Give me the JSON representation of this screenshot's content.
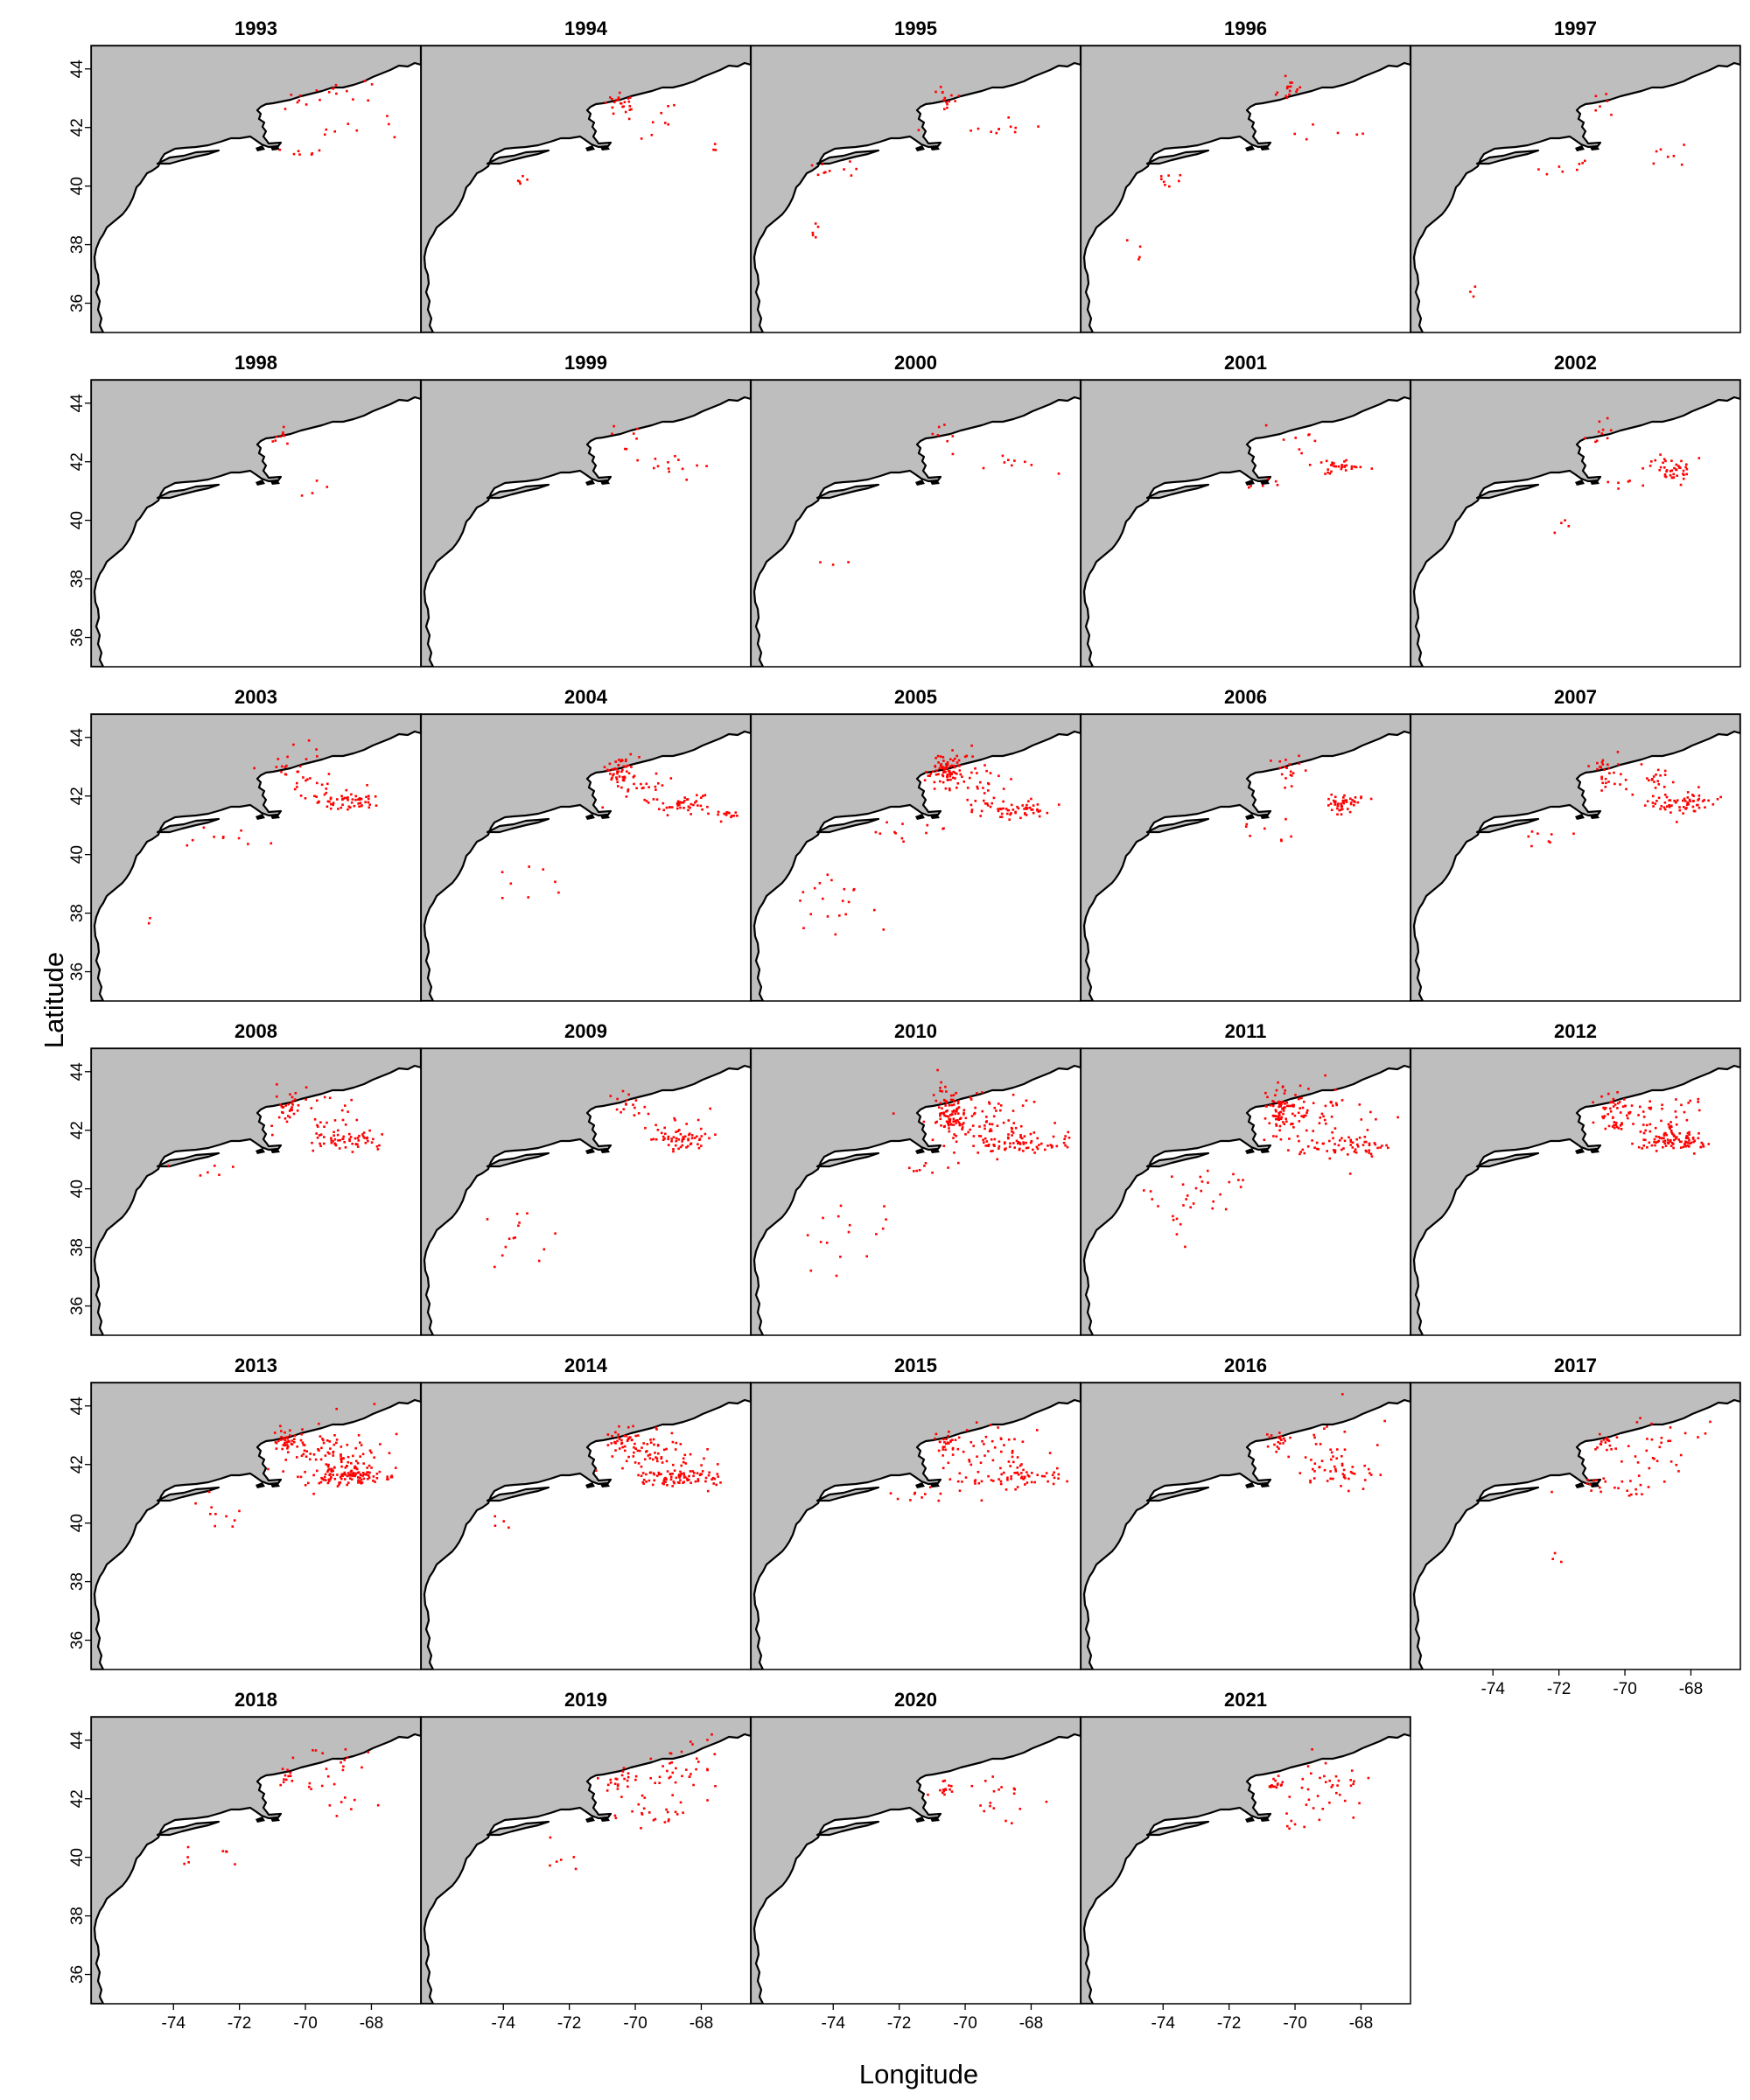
{
  "figure": {
    "xlabel": "Longitude",
    "ylabel": "Latitude",
    "lon_range": [
      -76.5,
      -66.5
    ],
    "lat_range": [
      35,
      44.8
    ],
    "x_ticks": [
      -74,
      -72,
      -70,
      -68
    ],
    "y_ticks": [
      36,
      38,
      40,
      42,
      44
    ],
    "colors": {
      "land": "#bebebe",
      "water": "#ffffff",
      "coastline": "#000000",
      "points": "#ff0000",
      "frame": "#000000"
    },
    "layout": {
      "rows": 6,
      "cols": 5,
      "y_axis_on": "first column only",
      "x_axis_on": "bottom panel of each column"
    }
  },
  "panels": [
    {
      "year": "1993",
      "hotspots": [
        [
          -70.4,
          42.8,
          0.5,
          0.3,
          6
        ],
        [
          -69.2,
          43.3,
          1.2,
          0.5,
          12
        ],
        [
          -68.5,
          42.0,
          1.2,
          0.3,
          8
        ],
        [
          -70.2,
          41.2,
          1.0,
          0.2,
          7
        ]
      ]
    },
    {
      "year": "1994",
      "hotspots": [
        [
          -70.5,
          42.9,
          0.35,
          0.35,
          22
        ],
        [
          -69.6,
          42.3,
          0.9,
          0.6,
          10
        ],
        [
          -67.4,
          41.3,
          0.4,
          0.2,
          3
        ],
        [
          -73.5,
          40.0,
          0.3,
          0.4,
          5
        ]
      ]
    },
    {
      "year": "1995",
      "hotspots": [
        [
          -70.6,
          43.0,
          0.35,
          0.35,
          14
        ],
        [
          -69.0,
          41.9,
          1.2,
          0.3,
          12
        ],
        [
          -73.9,
          40.6,
          0.8,
          0.3,
          10
        ],
        [
          -74.6,
          38.5,
          0.3,
          0.4,
          5
        ]
      ]
    },
    {
      "year": "1996",
      "hotspots": [
        [
          -70.2,
          43.4,
          0.35,
          0.35,
          16
        ],
        [
          -68.8,
          41.8,
          1.2,
          0.3,
          6
        ],
        [
          -73.8,
          40.2,
          0.5,
          0.3,
          8
        ],
        [
          -75.0,
          37.6,
          0.6,
          0.9,
          4
        ]
      ]
    },
    {
      "year": "1997",
      "hotspots": [
        [
          -70.6,
          42.8,
          0.3,
          0.6,
          6
        ],
        [
          -71.8,
          40.6,
          1.0,
          0.3,
          8
        ],
        [
          -68.6,
          41.2,
          1.2,
          0.5,
          7
        ],
        [
          -74.8,
          36.3,
          0.3,
          0.5,
          3
        ]
      ]
    },
    {
      "year": "1998",
      "hotspots": [
        [
          -70.7,
          42.8,
          0.2,
          0.4,
          10
        ],
        [
          -70.0,
          41.2,
          0.6,
          0.3,
          4
        ]
      ]
    },
    {
      "year": "1999",
      "hotspots": [
        [
          -70.3,
          42.8,
          0.5,
          0.5,
          8
        ],
        [
          -68.8,
          41.9,
          1.0,
          0.3,
          12
        ]
      ]
    },
    {
      "year": "2000",
      "hotspots": [
        [
          -70.6,
          43.0,
          0.4,
          0.4,
          6
        ],
        [
          -68.6,
          42.1,
          1.2,
          0.4,
          10
        ],
        [
          -74.0,
          38.6,
          0.6,
          0.4,
          3
        ]
      ]
    },
    {
      "year": "2001",
      "hotspots": [
        [
          -70.0,
          42.8,
          0.6,
          0.4,
          8
        ],
        [
          -68.7,
          41.9,
          0.7,
          0.35,
          30
        ],
        [
          -71.0,
          41.3,
          0.8,
          0.2,
          6
        ]
      ]
    },
    {
      "year": "2002",
      "hotspots": [
        [
          -70.8,
          43.0,
          0.4,
          0.4,
          10
        ],
        [
          -68.5,
          41.8,
          0.6,
          0.35,
          45
        ],
        [
          -70.0,
          41.2,
          0.6,
          0.3,
          6
        ],
        [
          -72.0,
          40.0,
          0.6,
          0.5,
          4
        ]
      ]
    },
    {
      "year": "2003",
      "hotspots": [
        [
          -70.2,
          43.0,
          0.8,
          0.7,
          30
        ],
        [
          -68.8,
          41.9,
          0.9,
          0.3,
          60
        ],
        [
          -72.5,
          40.6,
          1.4,
          0.3,
          10
        ],
        [
          -74.7,
          37.9,
          0.3,
          0.3,
          2
        ]
      ]
    },
    {
      "year": "2004",
      "hotspots": [
        [
          -70.5,
          42.9,
          0.4,
          0.5,
          45
        ],
        [
          -69.7,
          42.3,
          1.0,
          0.6,
          25
        ],
        [
          -68.6,
          41.7,
          0.8,
          0.3,
          40
        ],
        [
          -67.2,
          41.4,
          0.4,
          0.2,
          15
        ],
        [
          -73.5,
          39.5,
          1.2,
          1.2,
          8
        ]
      ]
    },
    {
      "year": "2005",
      "hotspots": [
        [
          -70.6,
          42.9,
          0.45,
          0.5,
          80
        ],
        [
          -69.8,
          42.8,
          0.9,
          0.8,
          30
        ],
        [
          -68.6,
          41.6,
          1.0,
          0.3,
          60
        ],
        [
          -74.0,
          38.5,
          1.2,
          1.5,
          20
        ],
        [
          -71.8,
          40.8,
          1.5,
          0.4,
          12
        ]
      ]
    },
    {
      "year": "2006",
      "hotspots": [
        [
          -70.3,
          42.9,
          0.5,
          0.5,
          18
        ],
        [
          -68.6,
          41.8,
          0.6,
          0.3,
          50
        ],
        [
          -71.0,
          40.8,
          1.0,
          0.4,
          8
        ]
      ]
    },
    {
      "year": "2007",
      "hotspots": [
        [
          -70.5,
          42.9,
          0.5,
          0.5,
          25
        ],
        [
          -69.2,
          42.5,
          1.0,
          0.5,
          25
        ],
        [
          -68.4,
          41.8,
          1.0,
          0.3,
          60
        ],
        [
          -72.8,
          40.6,
          1.2,
          0.3,
          8
        ]
      ]
    },
    {
      "year": "2008",
      "hotspots": [
        [
          -70.6,
          42.9,
          0.35,
          0.45,
          30
        ],
        [
          -69.5,
          42.5,
          1.2,
          0.8,
          25
        ],
        [
          -68.6,
          41.7,
          1.0,
          0.3,
          55
        ],
        [
          -72.8,
          40.6,
          0.8,
          0.3,
          6
        ]
      ]
    },
    {
      "year": "2009",
      "hotspots": [
        [
          -70.3,
          42.9,
          0.5,
          0.4,
          15
        ],
        [
          -69.0,
          42.2,
          1.4,
          0.6,
          20
        ],
        [
          -68.5,
          41.7,
          0.8,
          0.3,
          45
        ],
        [
          -73.5,
          38.2,
          1.4,
          1.4,
          14
        ]
      ]
    },
    {
      "year": "2010",
      "hotspots": [
        [
          -70.5,
          42.7,
          0.5,
          0.8,
          90
        ],
        [
          -69.4,
          42.3,
          1.2,
          0.9,
          70
        ],
        [
          -68.4,
          41.6,
          1.4,
          0.3,
          70
        ],
        [
          -73.5,
          38.6,
          1.4,
          1.2,
          16
        ],
        [
          -71.5,
          40.8,
          1.0,
          0.3,
          8
        ]
      ]
    },
    {
      "year": "2011",
      "hotspots": [
        [
          -70.5,
          42.7,
          0.45,
          0.8,
          70
        ],
        [
          -69.4,
          42.4,
          1.4,
          1.0,
          60
        ],
        [
          -68.4,
          41.5,
          1.4,
          0.35,
          60
        ],
        [
          -73.5,
          39.3,
          1.6,
          1.2,
          20
        ],
        [
          -72.6,
          40.4,
          1.0,
          0.3,
          12
        ]
      ]
    },
    {
      "year": "2012",
      "hotspots": [
        [
          -70.4,
          42.7,
          0.5,
          0.7,
          50
        ],
        [
          -69.2,
          42.3,
          1.2,
          0.8,
          50
        ],
        [
          -68.5,
          41.7,
          0.9,
          0.4,
          80
        ]
      ]
    },
    {
      "year": "2013",
      "hotspots": [
        [
          -70.6,
          42.9,
          0.3,
          0.35,
          30
        ],
        [
          -69.3,
          42.5,
          1.4,
          1.0,
          100
        ],
        [
          -68.7,
          41.6,
          1.3,
          0.35,
          100
        ],
        [
          -72.5,
          40.4,
          1.0,
          0.6,
          10
        ]
      ]
    },
    {
      "year": "2014",
      "hotspots": [
        [
          -70.4,
          42.9,
          0.4,
          0.4,
          30
        ],
        [
          -69.3,
          42.4,
          1.4,
          0.9,
          70
        ],
        [
          -68.6,
          41.6,
          1.3,
          0.3,
          80
        ],
        [
          -74.2,
          40.0,
          0.4,
          0.3,
          4
        ]
      ]
    },
    {
      "year": "2015",
      "hotspots": [
        [
          -70.6,
          42.8,
          0.3,
          0.3,
          20
        ],
        [
          -69.3,
          42.4,
          1.5,
          1.0,
          60
        ],
        [
          -68.6,
          41.6,
          1.3,
          0.3,
          50
        ],
        [
          -71.8,
          41.0,
          1.2,
          0.3,
          10
        ]
      ]
    },
    {
      "year": "2016",
      "hotspots": [
        [
          -70.6,
          42.8,
          0.3,
          0.3,
          20
        ],
        [
          -69.0,
          42.6,
          1.4,
          1.0,
          30
        ],
        [
          -68.5,
          41.7,
          1.3,
          0.4,
          30
        ]
      ]
    },
    {
      "year": "2017",
      "hotspots": [
        [
          -70.6,
          42.8,
          0.3,
          0.3,
          15
        ],
        [
          -69.0,
          42.6,
          1.4,
          1.0,
          30
        ],
        [
          -70.2,
          41.3,
          1.3,
          0.3,
          25
        ],
        [
          -72.2,
          39.5,
          0.5,
          0.8,
          3
        ]
      ]
    },
    {
      "year": "2018",
      "hotspots": [
        [
          -70.6,
          42.8,
          0.25,
          0.35,
          12
        ],
        [
          -69.0,
          42.8,
          1.2,
          1.2,
          25
        ],
        [
          -72.8,
          40.2,
          1.0,
          0.6,
          8
        ]
      ]
    },
    {
      "year": "2019",
      "hotspots": [
        [
          -70.5,
          42.6,
          0.4,
          0.4,
          20
        ],
        [
          -68.8,
          43.0,
          1.2,
          1.0,
          40
        ],
        [
          -69.5,
          41.5,
          0.9,
          0.3,
          20
        ],
        [
          -72.5,
          40.0,
          0.5,
          0.5,
          6
        ]
      ]
    },
    {
      "year": "2020",
      "hotspots": [
        [
          -70.6,
          42.4,
          0.25,
          0.3,
          12
        ],
        [
          -69.0,
          42.2,
          1.2,
          0.8,
          20
        ]
      ]
    },
    {
      "year": "2021",
      "hotspots": [
        [
          -70.6,
          42.5,
          0.3,
          0.3,
          15
        ],
        [
          -68.9,
          42.3,
          1.3,
          0.9,
          35
        ],
        [
          -70.0,
          41.2,
          0.6,
          0.3,
          6
        ]
      ]
    }
  ]
}
